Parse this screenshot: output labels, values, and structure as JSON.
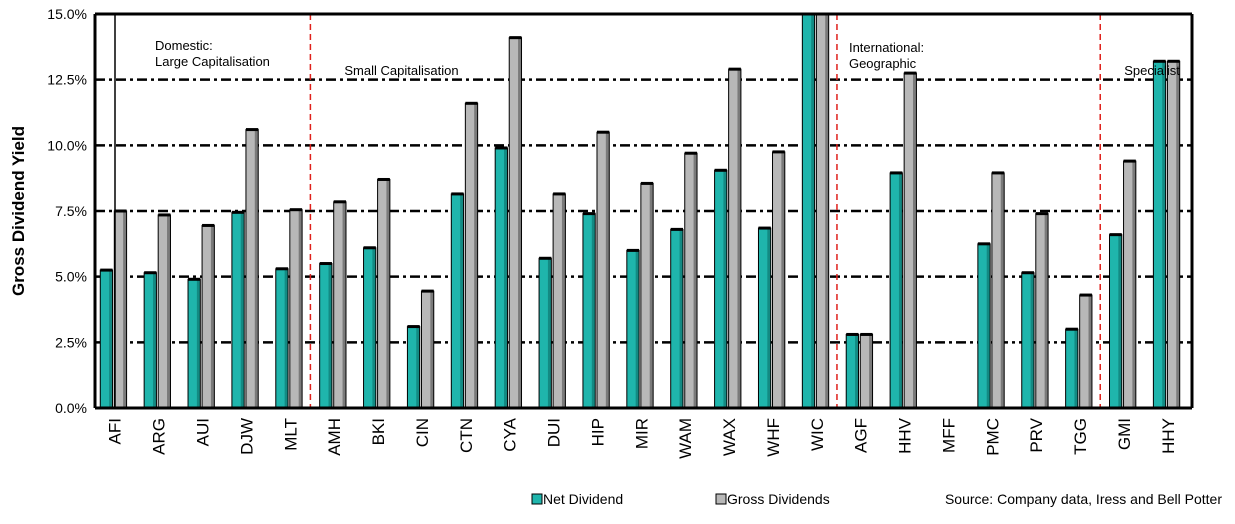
{
  "chart_data": {
    "type": "bar",
    "title": "",
    "xlabel": "",
    "ylabel": "Gross Dividend Yield",
    "ylim": [
      0,
      15
    ],
    "yticks": [
      "0.0%",
      "2.5%",
      "5.0%",
      "7.5%",
      "10.0%",
      "12.5%",
      "15.0%"
    ],
    "grid": true,
    "categories": [
      "AFI",
      "ARG",
      "AUI",
      "DJW",
      "MLT",
      "AMH",
      "BKI",
      "CIN",
      "CTN",
      "CYA",
      "DUI",
      "HIP",
      "MIR",
      "WAM",
      "WAX",
      "WHF",
      "WIC",
      "AGF",
      "HHV",
      "MFF",
      "PMC",
      "PRV",
      "TGG",
      "GMI",
      "HHY"
    ],
    "series": [
      {
        "name": "Net  Dividend",
        "color": "#1fb5ac",
        "values": [
          5.25,
          5.15,
          4.9,
          7.45,
          5.3,
          5.5,
          6.1,
          3.1,
          8.15,
          9.9,
          5.7,
          7.4,
          6.0,
          6.8,
          9.05,
          6.85,
          15.0,
          2.8,
          8.95,
          0.0,
          6.25,
          5.15,
          3.0,
          6.6,
          13.2
        ]
      },
      {
        "name": "Gross Dividends",
        "color": "#b8b8b8",
        "values": [
          7.5,
          7.35,
          6.95,
          10.6,
          7.55,
          7.85,
          8.7,
          4.45,
          11.6,
          14.1,
          8.15,
          10.5,
          8.55,
          9.7,
          12.9,
          9.75,
          15.0,
          2.8,
          12.75,
          0.0,
          8.95,
          7.4,
          4.3,
          9.4,
          13.2
        ]
      }
    ],
    "section_labels": [
      {
        "lines": [
          "Domestic:",
          "Large Capitalisation"
        ],
        "start": "AFI"
      },
      {
        "lines": [
          "Small Capitalisation"
        ],
        "start": "AMH"
      },
      {
        "lines": [
          "International:",
          "Geographic"
        ],
        "start": "AGF"
      },
      {
        "lines": [
          "Specialist"
        ],
        "start": "GMI"
      }
    ],
    "divider_color": "#e0201b",
    "legend_position": "bottom",
    "source_note": "Source: Company data, Iress and Bell Potter"
  }
}
